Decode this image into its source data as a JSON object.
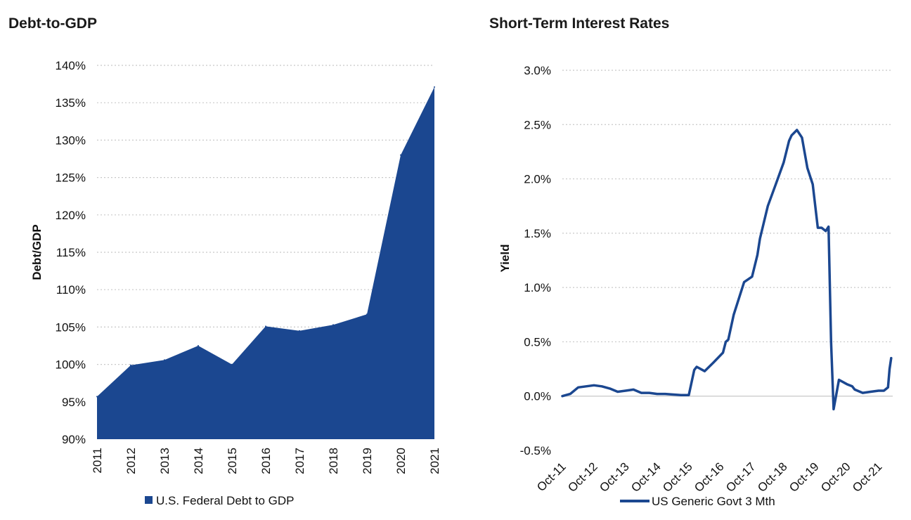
{
  "chart_data": [
    {
      "type": "area",
      "title": "Debt-to-GDP",
      "xlabel": "",
      "ylabel": "Debt/GDP",
      "ylim": [
        90,
        140
      ],
      "yticks": [
        "90%",
        "95%",
        "100%",
        "105%",
        "110%",
        "115%",
        "120%",
        "125%",
        "130%",
        "135%",
        "140%"
      ],
      "categories": [
        "2011",
        "2012",
        "2013",
        "2014",
        "2015",
        "2016",
        "2017",
        "2018",
        "2019",
        "2020",
        "2021"
      ],
      "series": [
        {
          "name": "U.S. Federal Debt to GDP",
          "color": "#1b4790",
          "values": [
            95.7,
            99.9,
            100.6,
            102.5,
            100.0,
            105.1,
            104.5,
            105.3,
            106.7,
            128.0,
            137.1
          ]
        }
      ],
      "grid": "horizontal dotted",
      "legend": "bottom"
    },
    {
      "type": "line",
      "title": "Short-Term Interest Rates",
      "xlabel": "",
      "ylabel": "Yield",
      "ylim": [
        -0.5,
        3.0
      ],
      "yticks": [
        "-0.5%",
        "0.0%",
        "0.5%",
        "1.0%",
        "1.5%",
        "2.0%",
        "2.5%",
        "3.0%"
      ],
      "xticks": [
        "Oct-11",
        "Oct-12",
        "Oct-13",
        "Oct-14",
        "Oct-15",
        "Oct-16",
        "Oct-17",
        "Oct-18",
        "Oct-19",
        "Oct-20",
        "Oct-21"
      ],
      "series": [
        {
          "name": "US Generic Govt 3 Mth",
          "color": "#1b4790",
          "x": [
            2011.75,
            2012.0,
            2012.25,
            2012.5,
            2012.75,
            2013.0,
            2013.25,
            2013.5,
            2013.75,
            2014.0,
            2014.25,
            2014.5,
            2014.75,
            2015.0,
            2015.5,
            2015.75,
            2015.92,
            2016.0,
            2016.25,
            2016.5,
            2016.83,
            2016.92,
            2017.0,
            2017.17,
            2017.5,
            2017.75,
            2017.92,
            2018.0,
            2018.25,
            2018.5,
            2018.75,
            2018.92,
            2019.0,
            2019.17,
            2019.33,
            2019.5,
            2019.67,
            2019.83,
            2019.95,
            2020.08,
            2020.17,
            2020.25,
            2020.33,
            2020.5,
            2020.75,
            2020.92,
            2021.0,
            2021.25,
            2021.5,
            2021.75,
            2021.92,
            2022.05,
            2022.1,
            2022.15
          ],
          "values": [
            0.0,
            0.02,
            0.08,
            0.09,
            0.1,
            0.09,
            0.07,
            0.04,
            0.05,
            0.06,
            0.03,
            0.03,
            0.02,
            0.02,
            0.01,
            0.01,
            0.24,
            0.27,
            0.23,
            0.3,
            0.4,
            0.5,
            0.52,
            0.75,
            1.05,
            1.1,
            1.3,
            1.45,
            1.75,
            1.95,
            2.15,
            2.35,
            2.4,
            2.45,
            2.38,
            2.1,
            1.95,
            1.55,
            1.55,
            1.52,
            1.56,
            0.5,
            -0.12,
            0.15,
            0.11,
            0.09,
            0.06,
            0.03,
            0.04,
            0.05,
            0.05,
            0.08,
            0.25,
            0.35
          ]
        }
      ],
      "grid": "horizontal dotted",
      "legend": "bottom"
    }
  ]
}
